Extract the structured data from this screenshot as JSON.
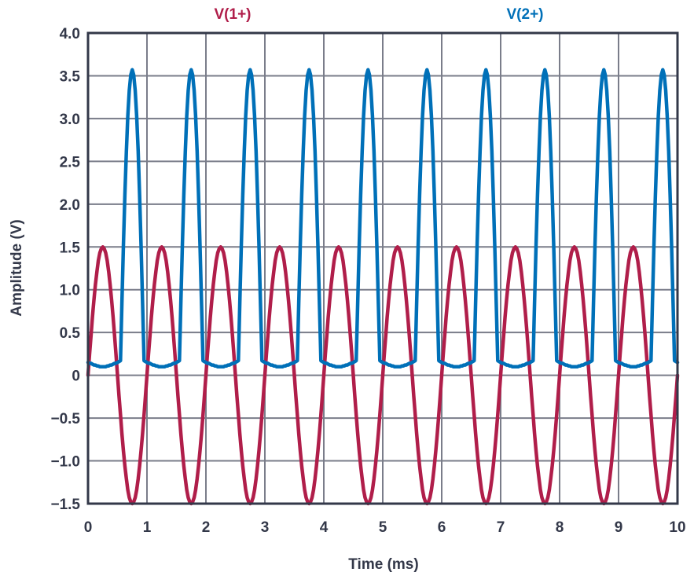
{
  "chart_data": {
    "type": "line",
    "title": "",
    "xlabel": "Time (ms)",
    "ylabel": "Amplitude (V)",
    "xlim": [
      0,
      10
    ],
    "ylim": [
      -1.5,
      4.0
    ],
    "grid": true,
    "legend_placement": "top",
    "x_ticks": [
      "0",
      "1",
      "2",
      "3",
      "4",
      "5",
      "6",
      "7",
      "8",
      "9",
      "10"
    ],
    "y_ticks": [
      "4.0",
      "3.5",
      "3.0",
      "2.5",
      "2.0",
      "1.5",
      "1.0",
      "0.5",
      "0",
      "−0.5",
      "−1.0",
      "−1.5"
    ],
    "y_tick_values": [
      4.0,
      3.5,
      3.0,
      2.5,
      2.0,
      1.5,
      1.0,
      0.5,
      0,
      -0.5,
      -1.0,
      -1.5
    ],
    "period_ms": 1,
    "one_period_t": [
      0,
      0.025,
      0.05,
      0.075,
      0.1,
      0.125,
      0.15,
      0.175,
      0.2,
      0.225,
      0.25,
      0.275,
      0.3,
      0.325,
      0.35,
      0.375,
      0.4,
      0.425,
      0.45,
      0.475,
      0.5,
      0.525,
      0.55,
      0.575,
      0.6,
      0.625,
      0.65,
      0.675,
      0.7,
      0.725,
      0.75,
      0.775,
      0.8,
      0.825,
      0.85,
      0.875,
      0.9,
      0.925,
      0.95,
      0.975,
      1.0
    ],
    "series": [
      {
        "name": "V(1+)",
        "color": "#B01E4A",
        "one_period_values": [
          0,
          0.24,
          0.46,
          0.68,
          0.88,
          1.06,
          1.21,
          1.34,
          1.43,
          1.48,
          1.5,
          1.48,
          1.43,
          1.34,
          1.21,
          1.06,
          0.88,
          0.68,
          0.46,
          0.24,
          0,
          -0.24,
          -0.46,
          -0.68,
          -0.88,
          -1.06,
          -1.21,
          -1.34,
          -1.43,
          -1.48,
          -1.5,
          -1.48,
          -1.43,
          -1.34,
          -1.21,
          -1.06,
          -0.88,
          -0.68,
          -0.46,
          -0.24,
          0
        ]
      },
      {
        "name": "V(2+)",
        "color": "#0070B8",
        "one_period_values": [
          0.15,
          0.14,
          0.14,
          0.13,
          0.12,
          0.12,
          0.11,
          0.11,
          0.1,
          0.1,
          0.1,
          0.1,
          0.1,
          0.11,
          0.11,
          0.12,
          0.12,
          0.13,
          0.14,
          0.14,
          0.15,
          0.16,
          0.17,
          0.84,
          1.51,
          2.11,
          2.62,
          3.03,
          3.33,
          3.51,
          3.57,
          3.51,
          3.33,
          3.03,
          2.62,
          2.11,
          1.51,
          0.84,
          0.17,
          0.16,
          0.15
        ]
      }
    ]
  }
}
